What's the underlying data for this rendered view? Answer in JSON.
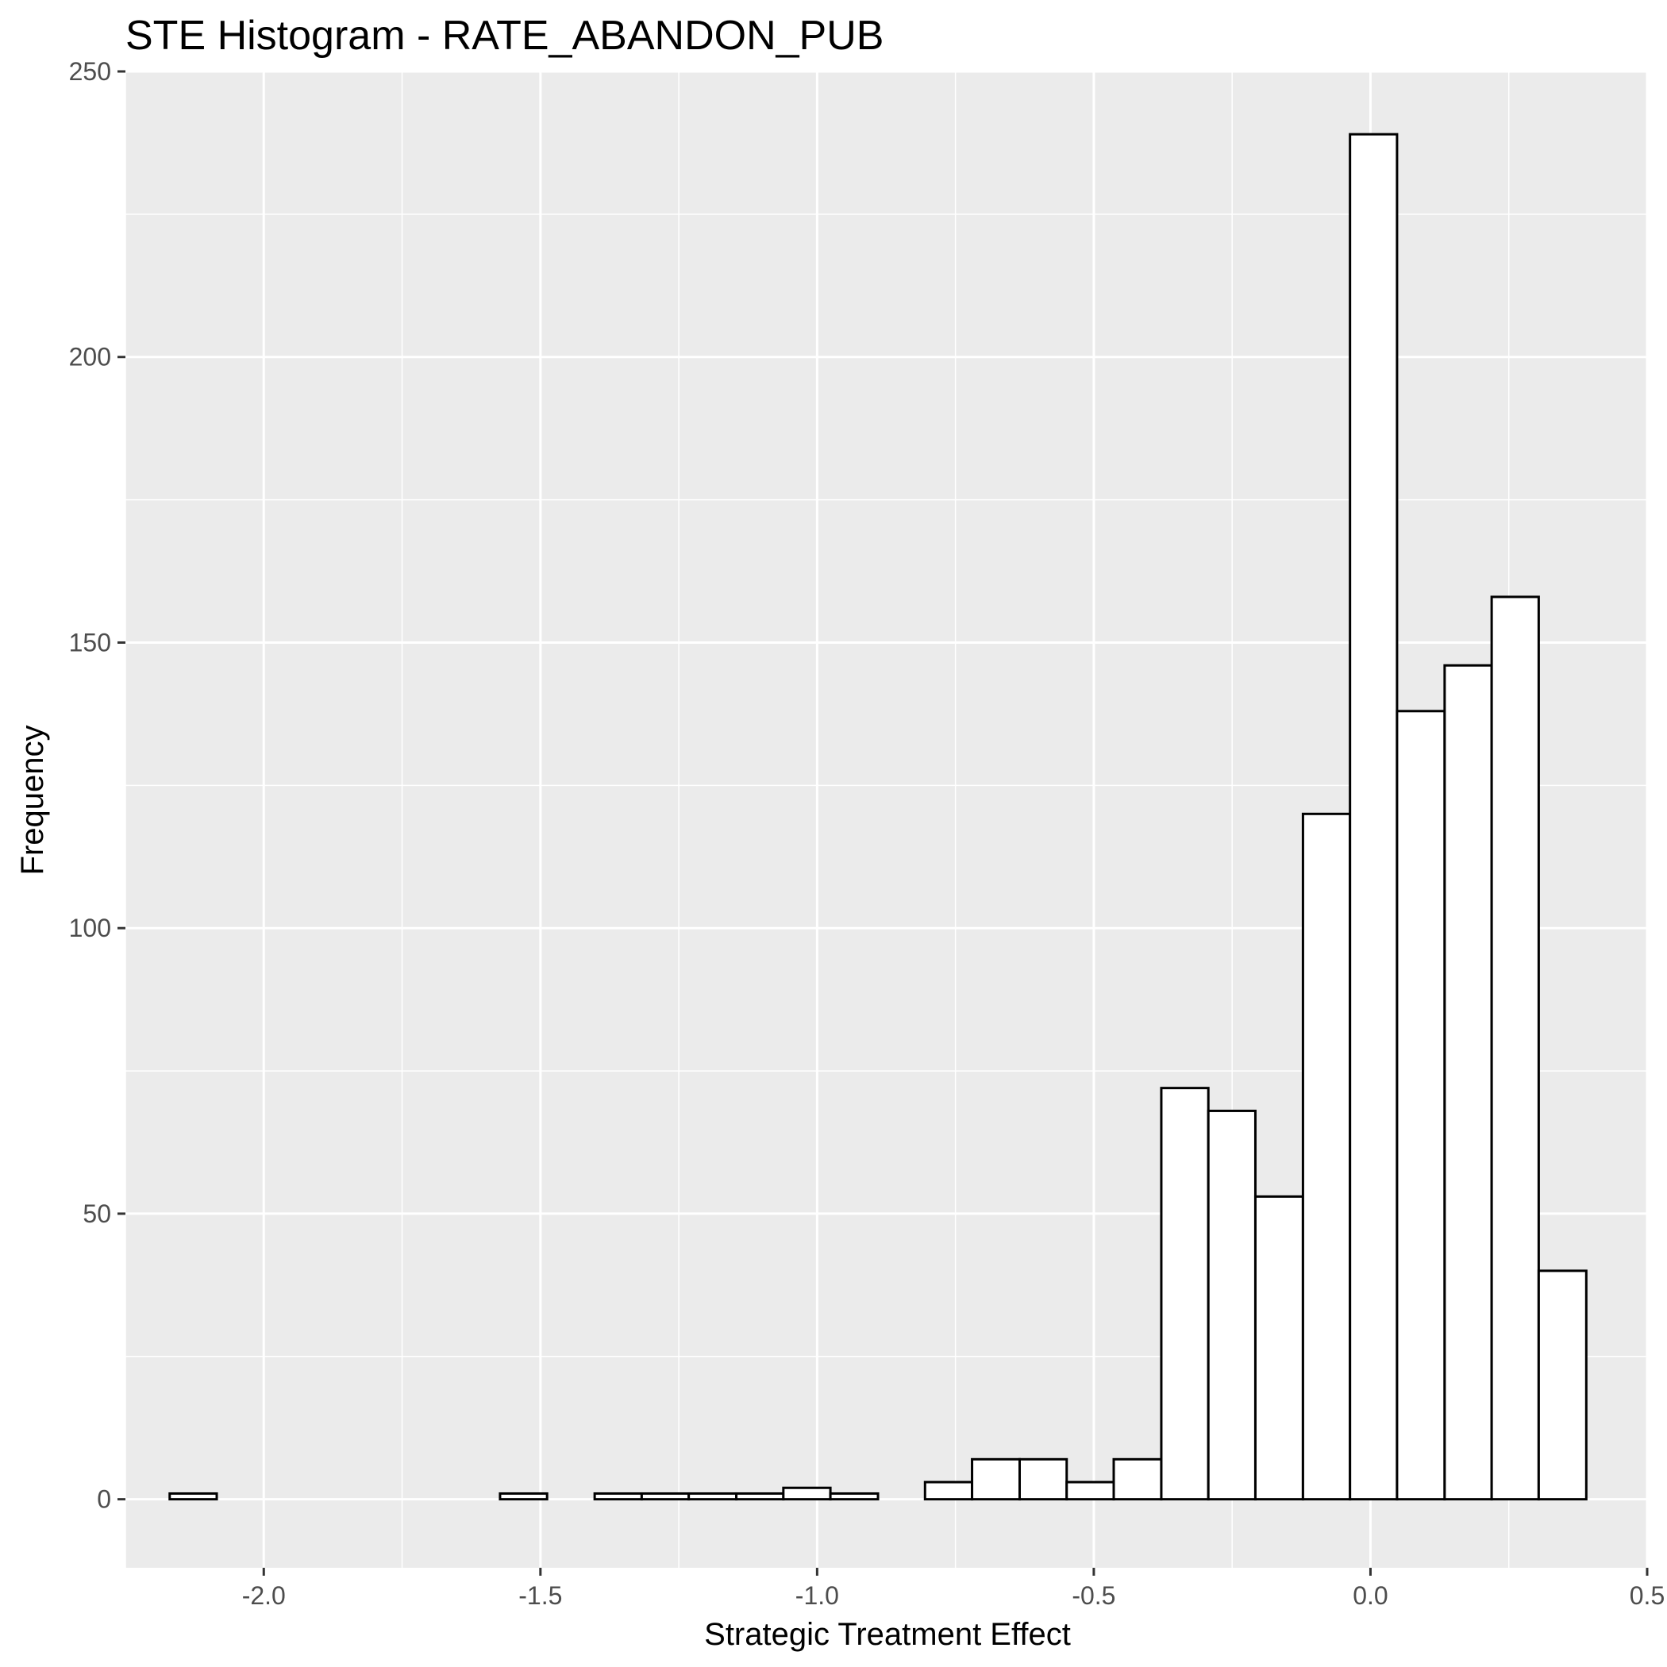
{
  "chart_data": {
    "type": "bar",
    "title": "STE Histogram -  RATE_ABANDON_PUB",
    "xlabel": "Strategic Treatment Effect",
    "ylabel": "Frequency",
    "xlim": [
      -2.25,
      0.5
    ],
    "ylim": [
      -12,
      250
    ],
    "x_ticks": [
      "-2.0",
      "-1.5",
      "-1.0",
      "-0.5",
      "0.0",
      "0.5"
    ],
    "y_ticks": [
      "0",
      "50",
      "100",
      "150",
      "200",
      "250"
    ],
    "grid": true,
    "bin_width": 0.0853,
    "bins": [
      {
        "x0": -2.17,
        "x1": -2.085,
        "count": 1
      },
      {
        "x0": -2.085,
        "x1": -1.999,
        "count": 0
      },
      {
        "x0": -1.999,
        "x1": -1.914,
        "count": 0
      },
      {
        "x0": -1.914,
        "x1": -1.829,
        "count": 0
      },
      {
        "x0": -1.829,
        "x1": -1.743,
        "count": 0
      },
      {
        "x0": -1.743,
        "x1": -1.658,
        "count": 0
      },
      {
        "x0": -1.658,
        "x1": -1.573,
        "count": 0
      },
      {
        "x0": -1.573,
        "x1": -1.488,
        "count": 1
      },
      {
        "x0": -1.488,
        "x1": -1.402,
        "count": 0
      },
      {
        "x0": -1.402,
        "x1": -1.317,
        "count": 1
      },
      {
        "x0": -1.317,
        "x1": -1.232,
        "count": 1
      },
      {
        "x0": -1.232,
        "x1": -1.146,
        "count": 1
      },
      {
        "x0": -1.146,
        "x1": -1.061,
        "count": 1
      },
      {
        "x0": -1.061,
        "x1": -0.976,
        "count": 2
      },
      {
        "x0": -0.976,
        "x1": -0.89,
        "count": 1
      },
      {
        "x0": -0.89,
        "x1": -0.805,
        "count": 0
      },
      {
        "x0": -0.805,
        "x1": -0.72,
        "count": 3
      },
      {
        "x0": -0.72,
        "x1": -0.634,
        "count": 7
      },
      {
        "x0": -0.634,
        "x1": -0.549,
        "count": 7
      },
      {
        "x0": -0.549,
        "x1": -0.464,
        "count": 3
      },
      {
        "x0": -0.464,
        "x1": -0.378,
        "count": 7
      },
      {
        "x0": -0.378,
        "x1": -0.293,
        "count": 72
      },
      {
        "x0": -0.293,
        "x1": -0.208,
        "count": 68
      },
      {
        "x0": -0.208,
        "x1": -0.122,
        "count": 53
      },
      {
        "x0": -0.122,
        "x1": -0.037,
        "count": 120
      },
      {
        "x0": -0.037,
        "x1": 0.048,
        "count": 239
      },
      {
        "x0": 0.048,
        "x1": 0.134,
        "count": 138
      },
      {
        "x0": 0.134,
        "x1": 0.219,
        "count": 146
      },
      {
        "x0": 0.219,
        "x1": 0.304,
        "count": 158
      },
      {
        "x0": 0.304,
        "x1": 0.39,
        "count": 40
      }
    ]
  },
  "colors": {
    "panel_background": "#ebebeb",
    "grid": "#ffffff",
    "bar_fill": "#ffffff",
    "bar_stroke": "#000000",
    "tick_text": "#4d4d4d",
    "tick_mark": "#333333"
  }
}
